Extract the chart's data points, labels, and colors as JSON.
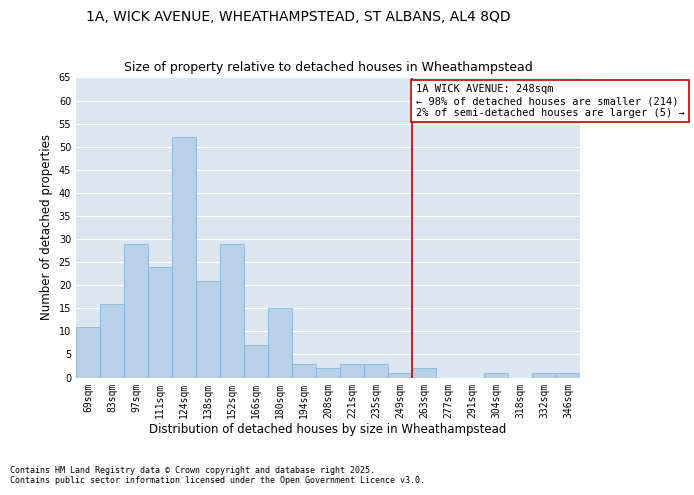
{
  "title_line1": "1A, WICK AVENUE, WHEATHAMPSTEAD, ST ALBANS, AL4 8QD",
  "title_line2": "Size of property relative to detached houses in Wheathampstead",
  "xlabel": "Distribution of detached houses by size in Wheathampstead",
  "ylabel": "Number of detached properties",
  "categories": [
    "69sqm",
    "83sqm",
    "97sqm",
    "111sqm",
    "124sqm",
    "138sqm",
    "152sqm",
    "166sqm",
    "180sqm",
    "194sqm",
    "208sqm",
    "221sqm",
    "235sqm",
    "249sqm",
    "263sqm",
    "277sqm",
    "291sqm",
    "304sqm",
    "318sqm",
    "332sqm",
    "346sqm"
  ],
  "values": [
    11,
    16,
    29,
    24,
    52,
    21,
    29,
    7,
    15,
    3,
    2,
    3,
    3,
    1,
    2,
    0,
    0,
    1,
    0,
    1,
    1
  ],
  "bar_color": "#b8d0e8",
  "bar_edge_color": "#7aafd4",
  "vline_color": "#cc0000",
  "annotation_text": "1A WICK AVENUE: 248sqm\n← 98% of detached houses are smaller (214)\n2% of semi-detached houses are larger (5) →",
  "ylim": [
    0,
    65
  ],
  "yticks": [
    0,
    5,
    10,
    15,
    20,
    25,
    30,
    35,
    40,
    45,
    50,
    55,
    60,
    65
  ],
  "background_color": "#dce6f0",
  "footer_text": "Contains HM Land Registry data © Crown copyright and database right 2025.\nContains public sector information licensed under the Open Government Licence v3.0.",
  "title_fontsize": 10,
  "subtitle_fontsize": 9,
  "axis_label_fontsize": 8.5,
  "tick_fontsize": 7,
  "annotation_fontsize": 7.5,
  "footer_fontsize": 6
}
